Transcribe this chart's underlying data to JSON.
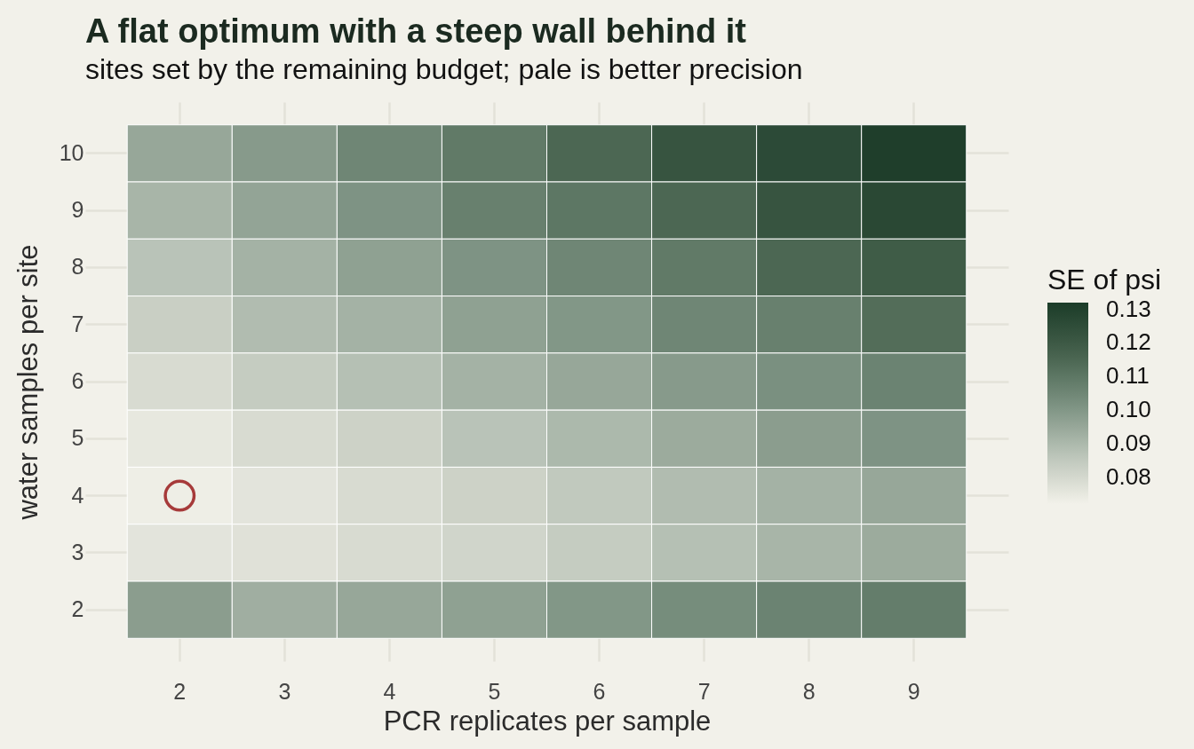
{
  "chart_data": {
    "type": "heatmap",
    "title": "A flat optimum with a steep wall behind it",
    "subtitle": "sites set by the remaining budget; pale is better precision",
    "xlabel": "PCR replicates per sample",
    "ylabel": "water samples per site",
    "clabel": "SE of psi",
    "categories": [
      "2",
      "3",
      "4",
      "5",
      "6",
      "7",
      "8",
      "9"
    ],
    "y_categories": [
      "10",
      "9",
      "8",
      "7",
      "6",
      "5",
      "4",
      "3",
      "2"
    ],
    "cells": [
      [
        0.095,
        0.099,
        0.105,
        0.109,
        0.115,
        0.122,
        0.126,
        0.131
      ],
      [
        0.091,
        0.096,
        0.101,
        0.107,
        0.11,
        0.115,
        0.122,
        0.127
      ],
      [
        0.087,
        0.092,
        0.097,
        0.101,
        0.105,
        0.109,
        0.115,
        0.119
      ],
      [
        0.083,
        0.089,
        0.092,
        0.097,
        0.1,
        0.105,
        0.107,
        0.113
      ],
      [
        0.079,
        0.084,
        0.088,
        0.092,
        0.095,
        0.099,
        0.102,
        0.106
      ],
      [
        0.075,
        0.079,
        0.082,
        0.087,
        0.09,
        0.094,
        0.098,
        0.101
      ],
      [
        0.073,
        0.076,
        0.079,
        0.082,
        0.085,
        0.089,
        0.092,
        0.095
      ],
      [
        0.076,
        0.077,
        0.079,
        0.081,
        0.084,
        0.088,
        0.091,
        0.094
      ],
      [
        0.098,
        0.093,
        0.095,
        0.097,
        0.1,
        0.103,
        0.106,
        0.108
      ]
    ],
    "clim": [
      0.072,
      0.132
    ],
    "cticks": [
      0.08,
      0.09,
      {
        "value": 0.1,
        "label": "0.10"
      },
      0.11,
      0.12,
      0.13
    ],
    "grid": true,
    "series": [
      {
        "type": "scatter",
        "x": [
          "2"
        ],
        "values": [
          6
        ],
        "color": "#a63a3a",
        "marker": "circle"
      }
    ]
  }
}
